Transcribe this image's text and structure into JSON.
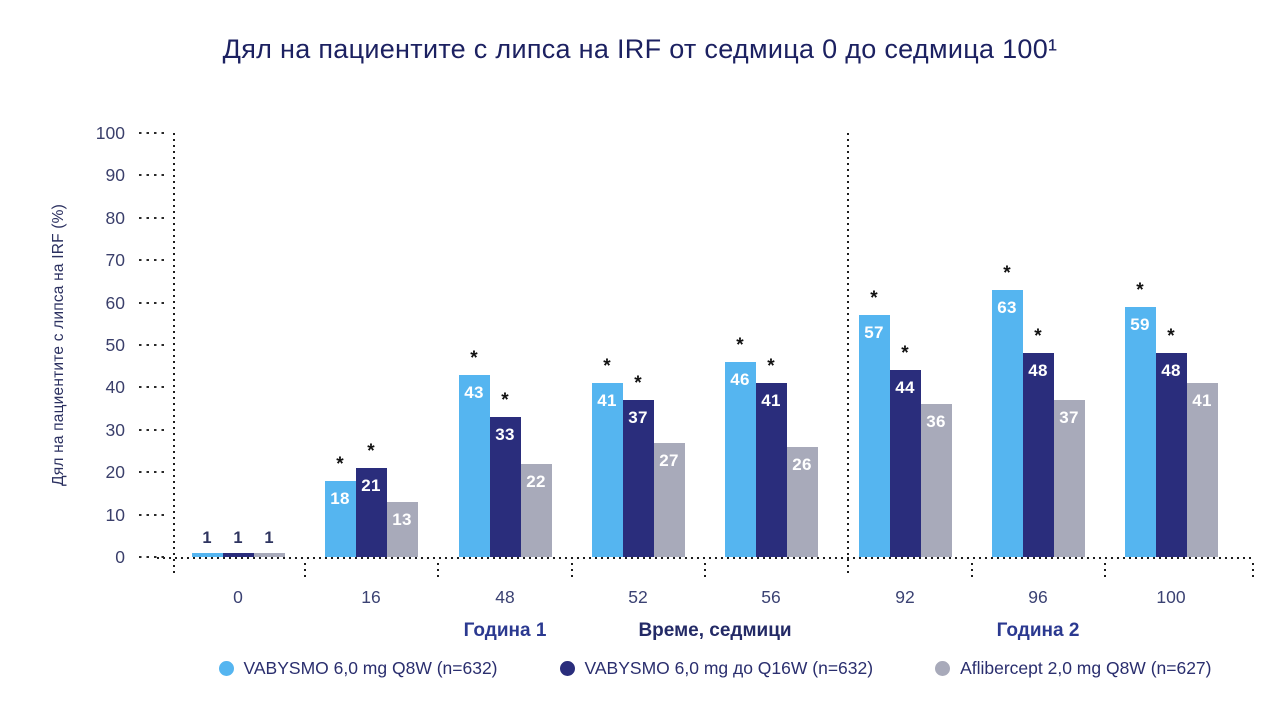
{
  "chart_data": {
    "type": "bar",
    "title": "Дял на пациентите с липса на IRF от седмица 0 до седмица 100¹",
    "ylabel": "Дял на пациентите с липса на IRF (%)",
    "xlabel": "Време, седмици",
    "ylim": [
      0,
      100
    ],
    "yticks": [
      0,
      10,
      20,
      30,
      40,
      50,
      60,
      70,
      80,
      90,
      100
    ],
    "grid": "dotted-axes-only",
    "legend_position": "bottom",
    "categories": [
      "0",
      "16",
      "48",
      "52",
      "56",
      "92",
      "96",
      "100"
    ],
    "series": [
      {
        "name": "VABYSMO 6,0 mg Q8W (n=632)",
        "color": "#55b5f0",
        "values": [
          1,
          18,
          43,
          41,
          46,
          57,
          63,
          59
        ],
        "significant": [
          false,
          true,
          true,
          true,
          true,
          true,
          true,
          true
        ]
      },
      {
        "name": "VABYSMO 6,0 mg до Q16W (n=632)",
        "color": "#2a2d7c",
        "values": [
          1,
          21,
          33,
          37,
          41,
          44,
          48,
          48
        ],
        "significant": [
          false,
          true,
          true,
          true,
          true,
          true,
          true,
          true
        ]
      },
      {
        "name": "Aflibercept 2,0 mg Q8W (n=627)",
        "color": "#a8aaba",
        "values": [
          1,
          13,
          22,
          27,
          26,
          36,
          37,
          41
        ],
        "significant": [
          false,
          false,
          false,
          false,
          false,
          false,
          false,
          false
        ]
      }
    ],
    "annotations": {
      "year1": "Година 1",
      "year2": "Година 2",
      "divider_after_category": "56",
      "significance_marker": "*"
    }
  }
}
